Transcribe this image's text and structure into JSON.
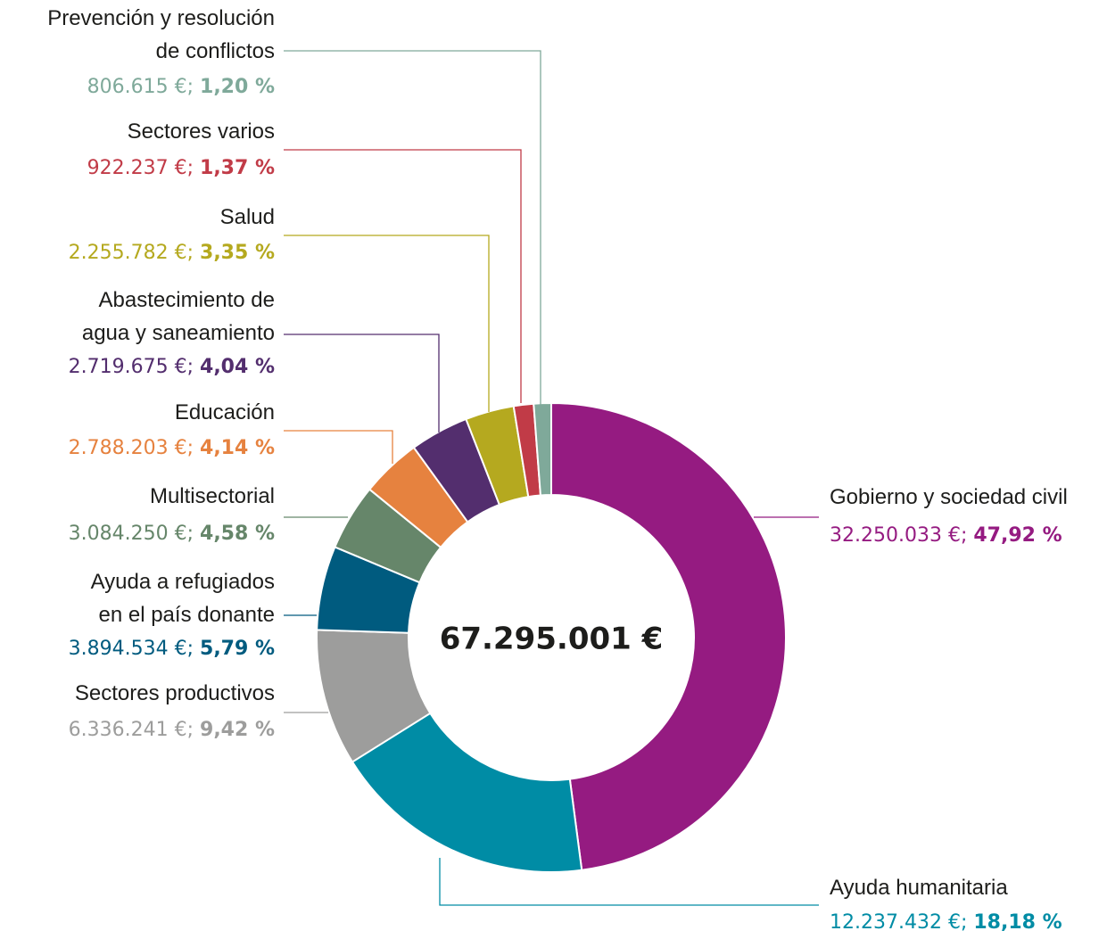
{
  "chart_data": {
    "type": "donut",
    "categories": [
      "Gobierno y sociedad civil",
      "Ayuda humanitaria",
      "Sectores productivos",
      "Ayuda a refugiados\nen el país donante",
      "Multisectorial",
      "Educación",
      "Abastecimiento de\nagua y saneamiento",
      "Salud",
      "Sectores varios",
      "Prevención y resolución\nde conflictos"
    ],
    "values": [
      32250033,
      12237432,
      6336241,
      3894534,
      3084250,
      2788203,
      2719675,
      2255782,
      922237,
      806615
    ],
    "value_labels": [
      "32.250.033 €;",
      "12.237.432 €;",
      "6.336.241 €;",
      "3.894.534 €;",
      "3.084.250 €;",
      "2.788.203 €;",
      "2.719.675 €;",
      "2.255.782 €;",
      "922.237 €;",
      "806.615 €;"
    ],
    "percentages": [
      47.92,
      18.18,
      9.42,
      5.79,
      4.58,
      4.14,
      4.04,
      3.35,
      1.37,
      1.2
    ],
    "percentage_labels": [
      "47,92 %",
      "18,18 %",
      "9,42 %",
      "5,79 %",
      "4,58 %",
      "4,14 %",
      "4,04 %",
      "3,35 %",
      "1,37 %",
      "1,20 %"
    ],
    "colors": [
      "#951b81",
      "#008ca5",
      "#9d9d9c",
      "#005b7f",
      "#66866a",
      "#e6823f",
      "#532e6e",
      "#b5a91f",
      "#c13b47",
      "#7fa99a"
    ],
    "total": 67295001,
    "total_label": "67.295.001 €"
  }
}
